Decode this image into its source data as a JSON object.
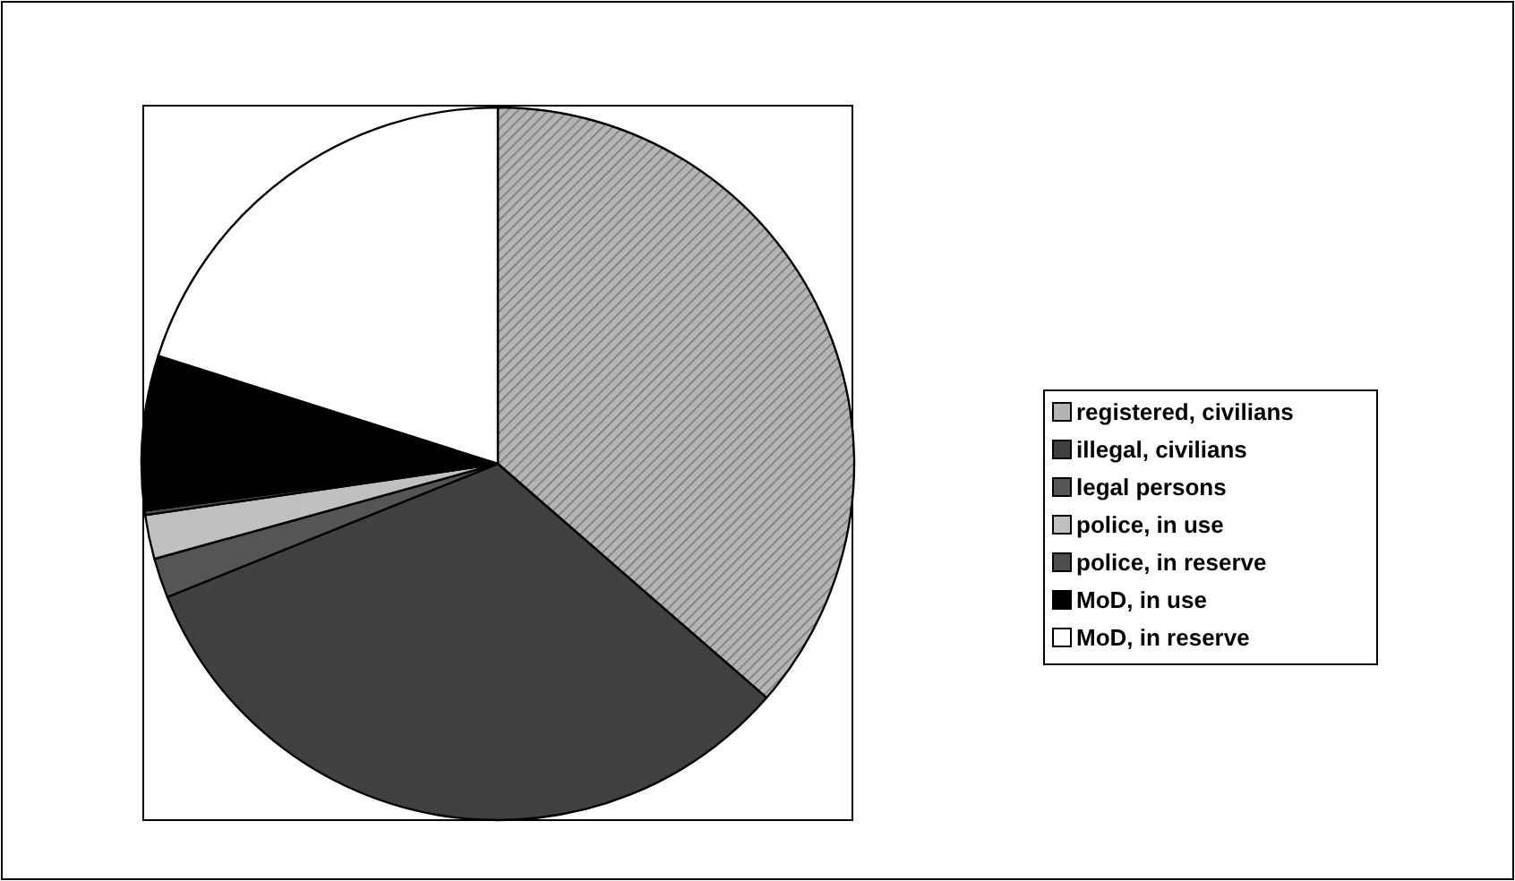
{
  "chart_data": {
    "type": "pie",
    "categories": [
      "registered, civilians",
      "illegal, civilians",
      "legal persons",
      "police, in use",
      "police, in reserve",
      "MoD, in use",
      "MoD, in reserve"
    ],
    "values": [
      36.4,
      32.5,
      1.8,
      2.0,
      0.2,
      7.0,
      20.1
    ],
    "colors": [
      "#b4b4b4",
      "#404040",
      "#555555",
      "#c0c0c0",
      "#4d4d4d",
      "#000000",
      "#ffffff"
    ],
    "legend": "right"
  }
}
